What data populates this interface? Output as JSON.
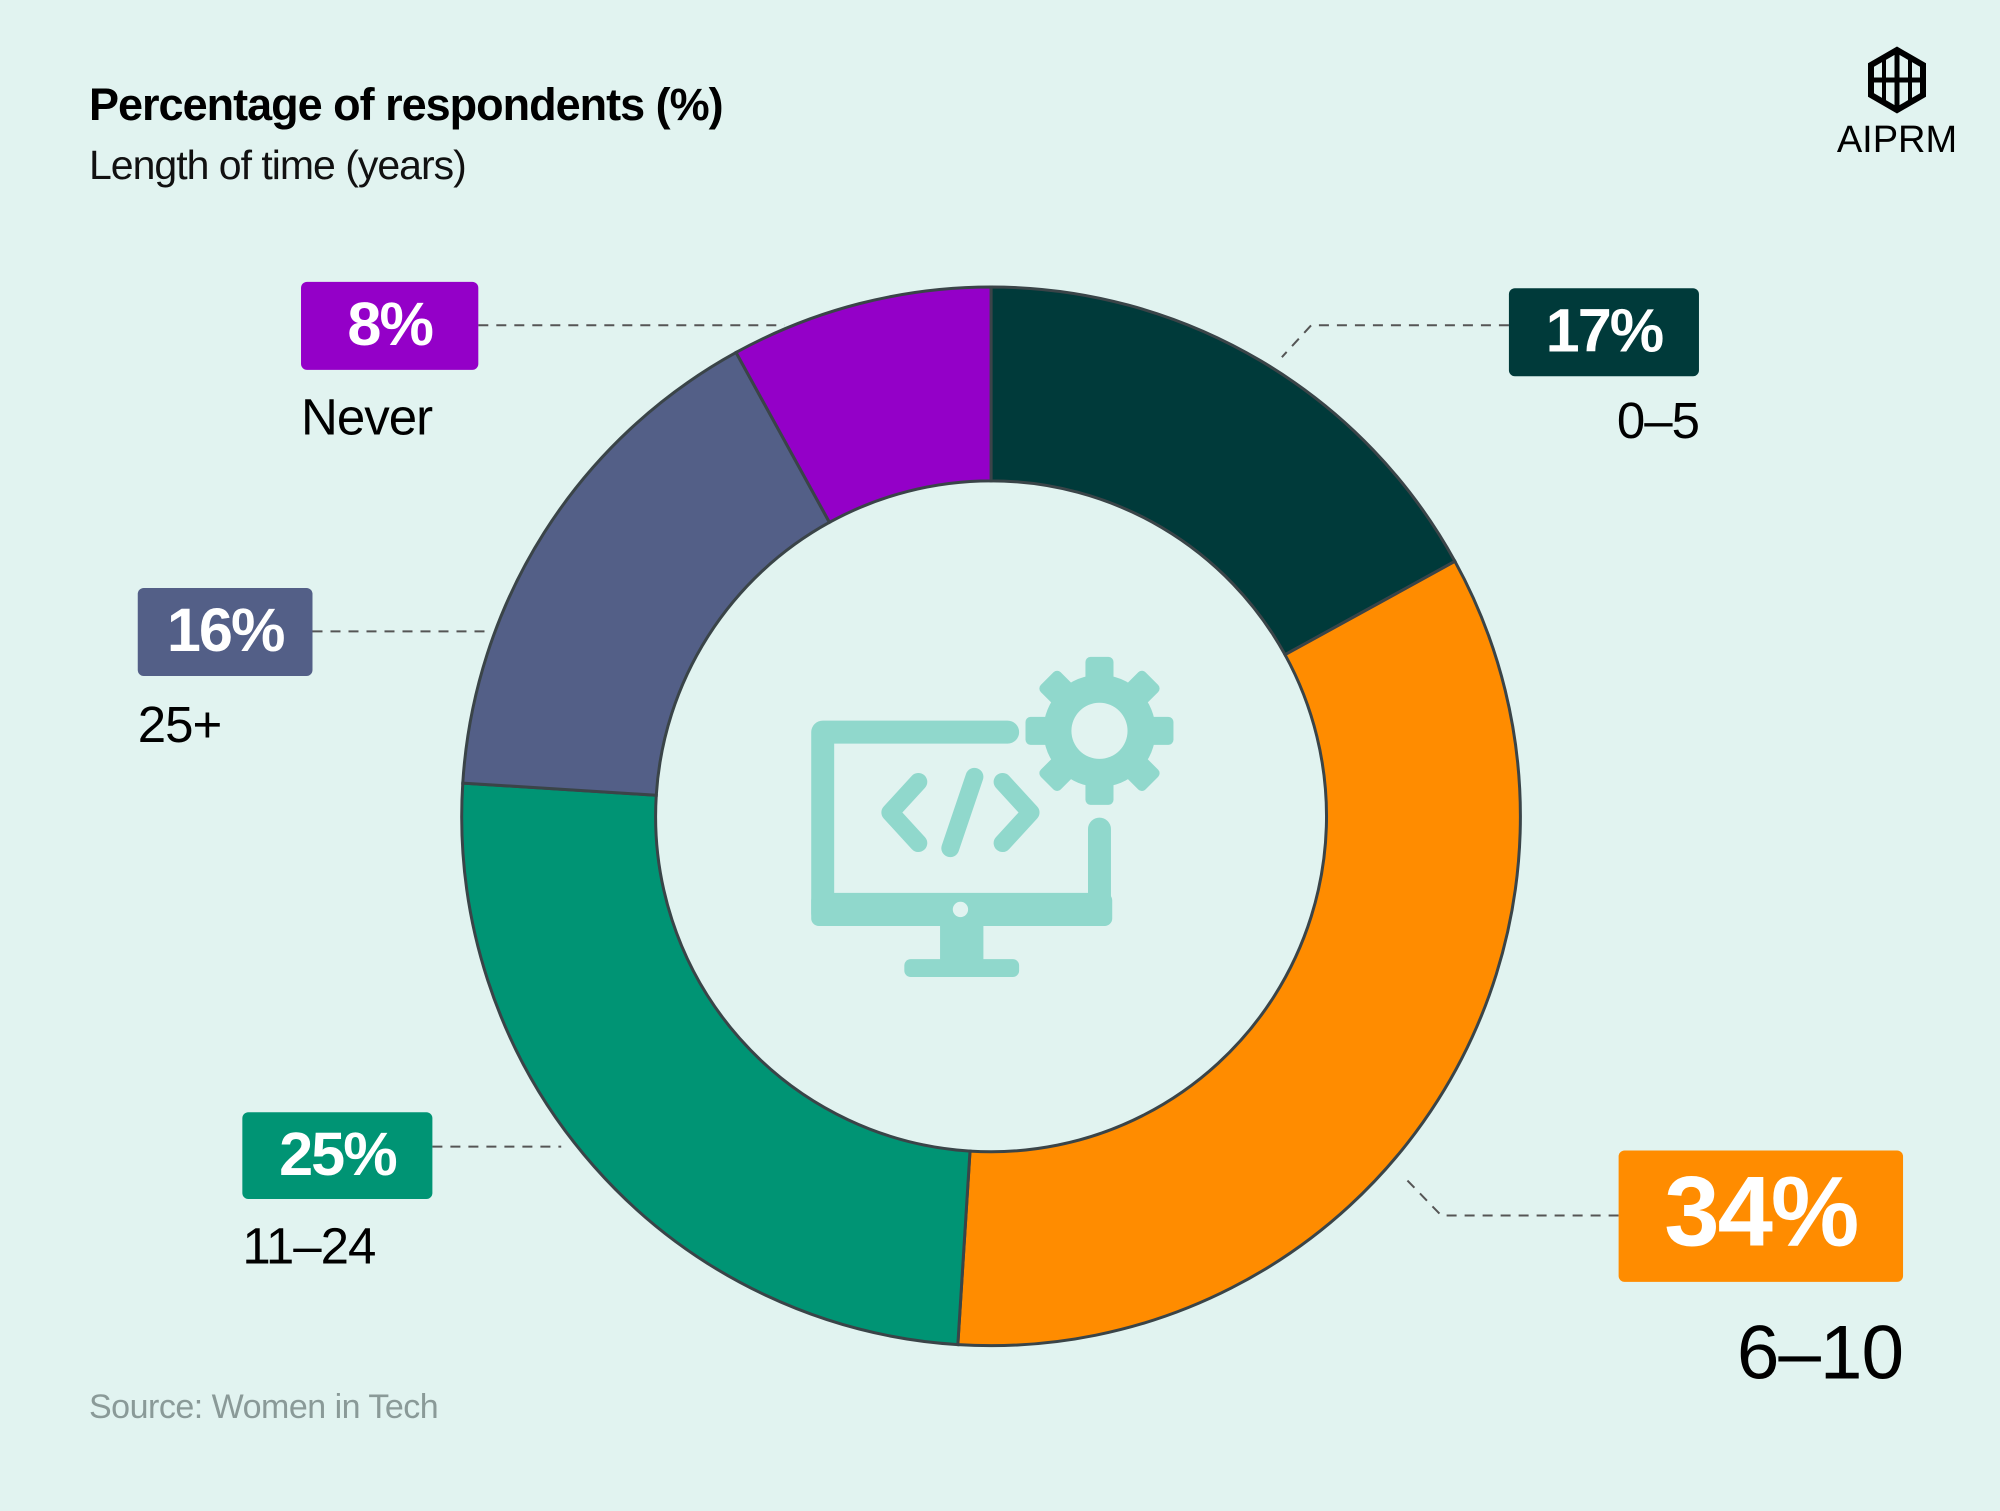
{
  "chart_data": {
    "type": "donut",
    "title": "Percentage of respondents (%)",
    "subtitle": "Length of time (years)",
    "categories": [
      "0–5",
      "6–10",
      "11–24",
      "25+",
      "Never"
    ],
    "values": [
      17,
      34,
      25,
      16,
      8
    ],
    "value_labels": [
      "17%",
      "34%",
      "25%",
      "16%",
      "8%"
    ],
    "colors": [
      "#003a3a",
      "#ff8c00",
      "#009474",
      "#535f87",
      "#9400c8"
    ],
    "source": "Source: Women in Tech",
    "logo": "AIPRM"
  }
}
